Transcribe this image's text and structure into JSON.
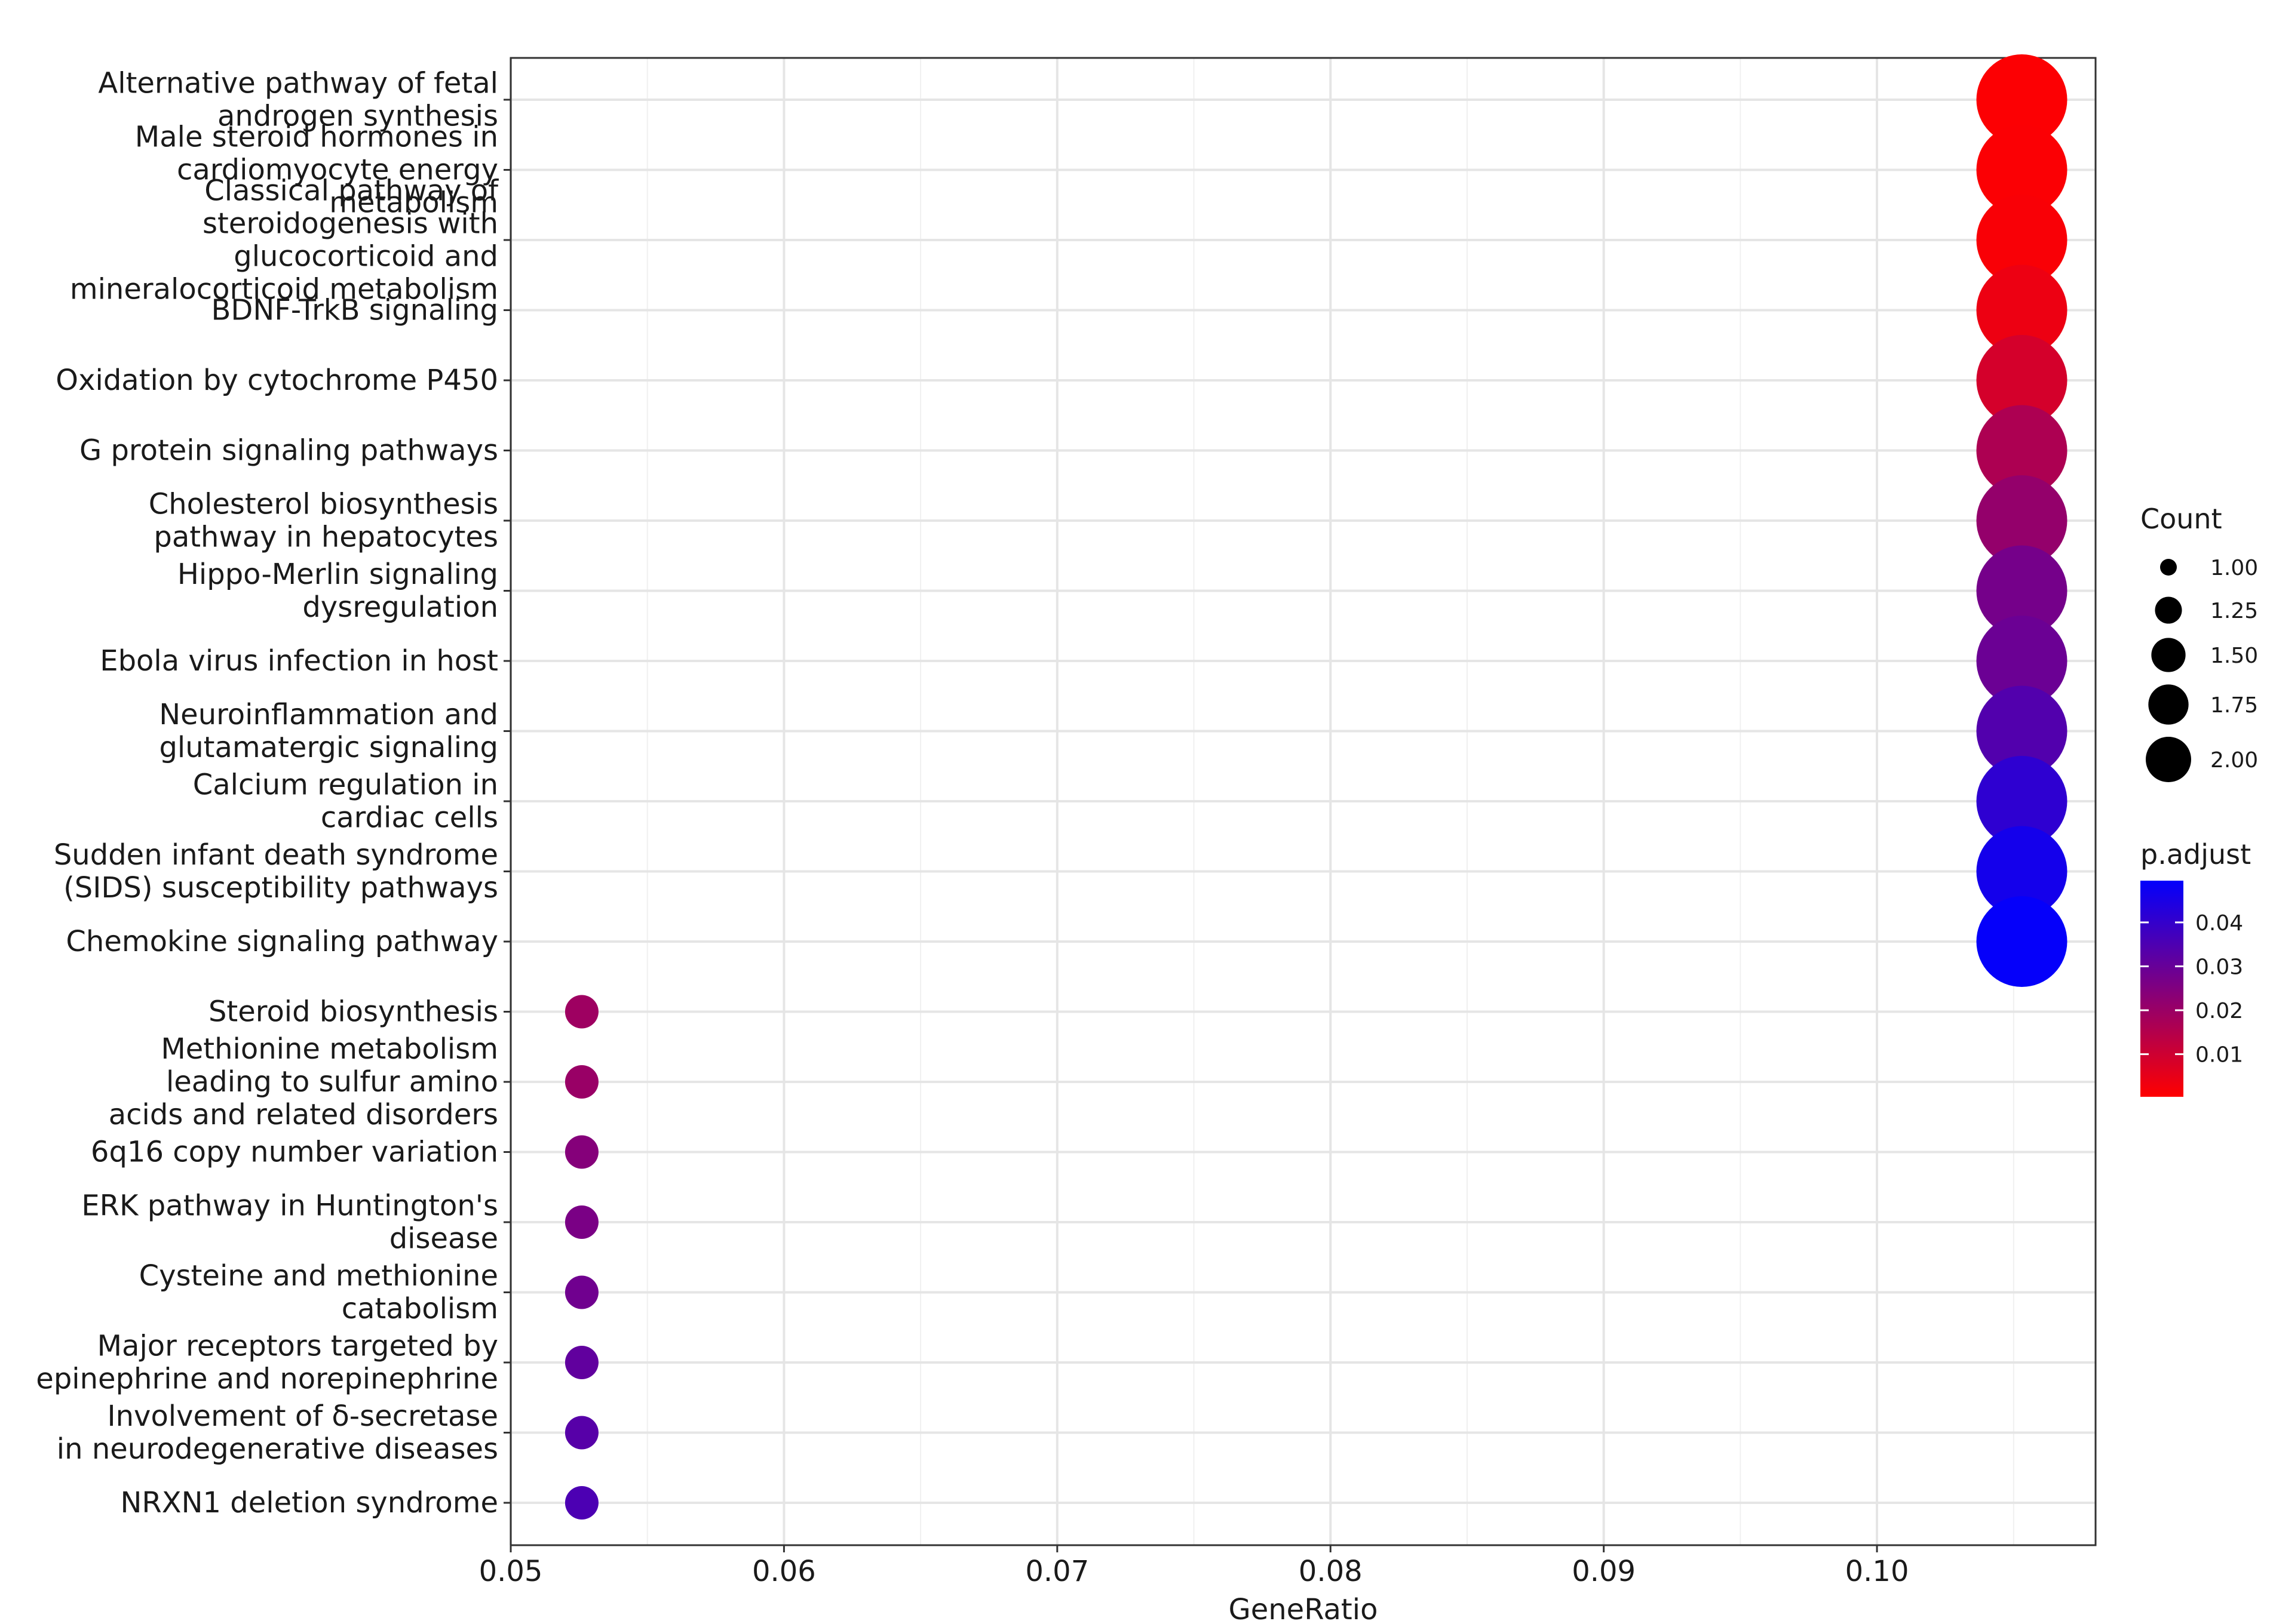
{
  "chart_data": {
    "type": "scatter",
    "xlabel": "GeneRatio",
    "ylabel": "",
    "xlim": [
      0.05,
      0.108
    ],
    "x_ticks": [
      "0.05",
      "0.06",
      "0.07",
      "0.08",
      "0.09",
      "0.10"
    ],
    "grid": true,
    "legend_position": "right",
    "categories": [
      [
        "Alternative pathway of fetal",
        "androgen synthesis"
      ],
      [
        "Male steroid hormones in",
        "cardiomyocyte energy",
        "metabolism"
      ],
      [
        "Classical pathway of",
        "steroidogenesis with",
        "glucocorticoid and",
        "mineralocorticoid metabolism"
      ],
      [
        "BDNF-TrkB signaling"
      ],
      [
        "Oxidation by cytochrome P450"
      ],
      [
        "G protein signaling pathways"
      ],
      [
        "Cholesterol biosynthesis",
        "pathway in hepatocytes"
      ],
      [
        "Hippo-Merlin signaling",
        "dysregulation"
      ],
      [
        "Ebola virus infection in host"
      ],
      [
        "Neuroinflammation and",
        "glutamatergic signaling"
      ],
      [
        "Calcium regulation in",
        "cardiac cells"
      ],
      [
        "Sudden infant death syndrome",
        "(SIDS) susceptibility pathways"
      ],
      [
        "Chemokine signaling pathway"
      ],
      [
        "Steroid biosynthesis"
      ],
      [
        "Methionine metabolism",
        "leading to sulfur amino",
        "acids and related disorders"
      ],
      [
        "6q16 copy number variation"
      ],
      [
        "ERK pathway in Huntington's",
        "disease"
      ],
      [
        "Cysteine and methionine",
        "catabolism"
      ],
      [
        "Major receptors targeted by",
        "epinephrine and norepinephrine"
      ],
      [
        "Involvement of δ-secretase",
        "in neurodegenerative diseases"
      ],
      [
        "NRXN1 deletion syndrome"
      ]
    ],
    "points": [
      {
        "x": 0.1053,
        "count": 2,
        "p_adjust": 0.0005
      },
      {
        "x": 0.1053,
        "count": 2,
        "p_adjust": 0.0008
      },
      {
        "x": 0.1053,
        "count": 2,
        "p_adjust": 0.0012
      },
      {
        "x": 0.1053,
        "count": 2,
        "p_adjust": 0.0035
      },
      {
        "x": 0.1053,
        "count": 2,
        "p_adjust": 0.0085
      },
      {
        "x": 0.1053,
        "count": 2,
        "p_adjust": 0.016
      },
      {
        "x": 0.1053,
        "count": 2,
        "p_adjust": 0.021
      },
      {
        "x": 0.1053,
        "count": 2,
        "p_adjust": 0.027
      },
      {
        "x": 0.1053,
        "count": 2,
        "p_adjust": 0.029
      },
      {
        "x": 0.1053,
        "count": 2,
        "p_adjust": 0.034
      },
      {
        "x": 0.1053,
        "count": 2,
        "p_adjust": 0.041
      },
      {
        "x": 0.1053,
        "count": 2,
        "p_adjust": 0.046
      },
      {
        "x": 0.1053,
        "count": 2,
        "p_adjust": 0.049
      },
      {
        "x": 0.0526,
        "count": 1,
        "p_adjust": 0.019
      },
      {
        "x": 0.0526,
        "count": 1,
        "p_adjust": 0.02
      },
      {
        "x": 0.0526,
        "count": 1,
        "p_adjust": 0.024
      },
      {
        "x": 0.0526,
        "count": 1,
        "p_adjust": 0.026
      },
      {
        "x": 0.0526,
        "count": 1,
        "p_adjust": 0.028
      },
      {
        "x": 0.0526,
        "count": 1,
        "p_adjust": 0.031
      },
      {
        "x": 0.0526,
        "count": 1,
        "p_adjust": 0.033
      },
      {
        "x": 0.0526,
        "count": 1,
        "p_adjust": 0.035
      }
    ],
    "size_legend": {
      "title": "Count",
      "values": [
        1.0,
        1.25,
        1.5,
        1.75,
        2.0
      ],
      "labels": [
        "1.00",
        "1.25",
        "1.50",
        "1.75",
        "2.00"
      ]
    },
    "color_legend": {
      "title": "p.adjust",
      "low_color": "#ff0000",
      "high_color": "#0000ff",
      "range": [
        0.0,
        0.05
      ],
      "ticks": [
        0.01,
        0.02,
        0.03,
        0.04
      ],
      "tick_labels": [
        "0.01",
        "0.02",
        "0.03",
        "0.04"
      ]
    }
  }
}
